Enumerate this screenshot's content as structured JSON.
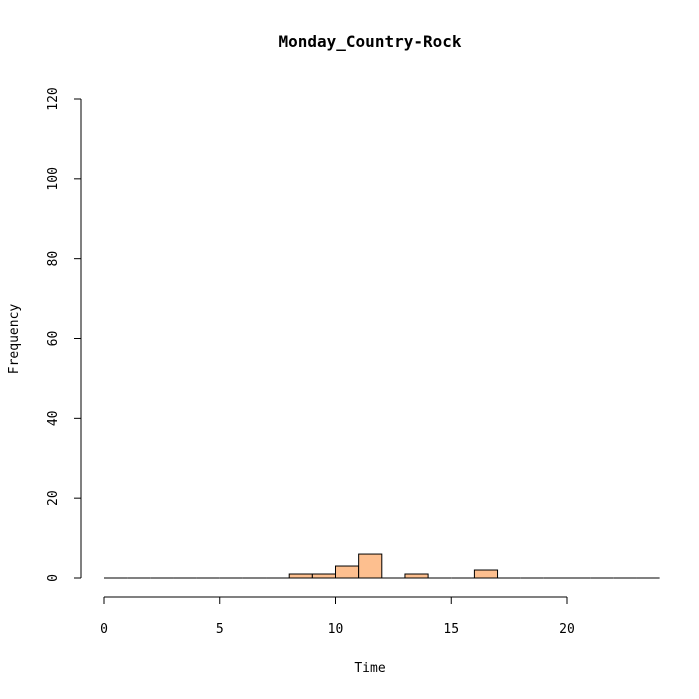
{
  "chart_data": {
    "type": "bar",
    "title": "Monday_Country-Rock",
    "xlabel": "Time",
    "ylabel": "Frequency",
    "xlim": [
      0,
      24
    ],
    "ylim": [
      0,
      120
    ],
    "x_ticks": [
      0,
      5,
      10,
      15,
      20
    ],
    "y_ticks": [
      0,
      20,
      40,
      60,
      80,
      100,
      120
    ],
    "bin_width": 1,
    "bin_starts": [
      0,
      1,
      2,
      3,
      4,
      5,
      6,
      7,
      8,
      9,
      10,
      11,
      12,
      13,
      14,
      15,
      16,
      17,
      18,
      19,
      20,
      21,
      22,
      23
    ],
    "values": [
      0,
      0,
      0,
      0,
      0,
      0,
      0,
      0,
      1,
      1,
      3,
      6,
      0,
      1,
      0,
      0,
      2,
      0,
      0,
      0,
      0,
      0,
      0,
      0
    ],
    "bar_color": "#FDBF8F",
    "grid": false
  }
}
